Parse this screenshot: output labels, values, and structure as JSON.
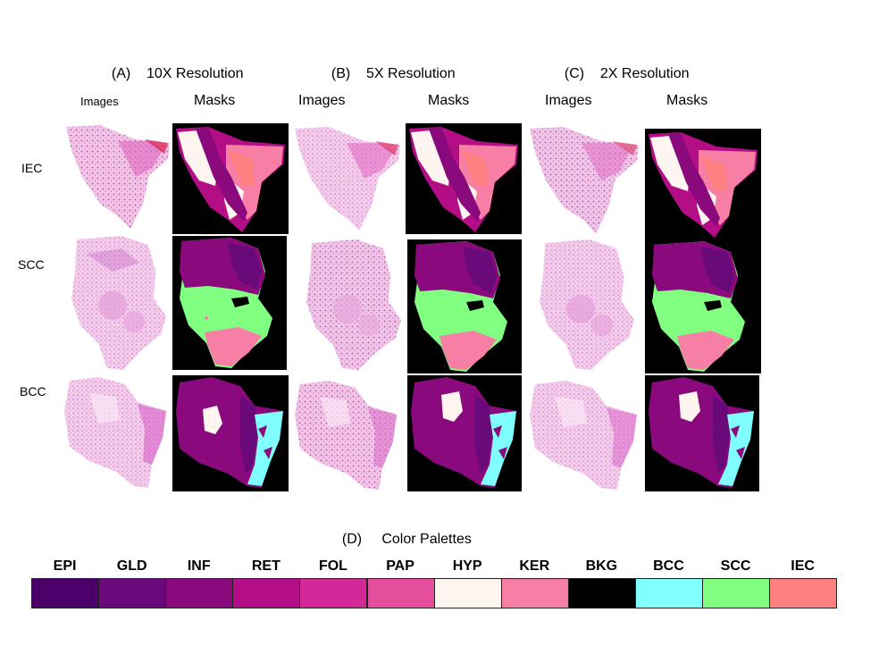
{
  "sections": [
    {
      "letter": "(A)",
      "title": "10X Resolution"
    },
    {
      "letter": "(B)",
      "title": "5X Resolution"
    },
    {
      "letter": "(C)",
      "title": "2X Resolution"
    }
  ],
  "column_headers": {
    "images": "Images",
    "masks": "Masks"
  },
  "row_labels": [
    "IEC",
    "SCC",
    "BCC"
  ],
  "palette": {
    "letter": "(D)",
    "title": "Color Palettes",
    "classes": [
      {
        "label": "EPI",
        "color": "#4a0068"
      },
      {
        "label": "GLD",
        "color": "#6a0a7a"
      },
      {
        "label": "INF",
        "color": "#8a0a7e"
      },
      {
        "label": "RET",
        "color": "#b30e86"
      },
      {
        "label": "FOL",
        "color": "#d3289a"
      },
      {
        "label": "PAP",
        "color": "#e54e9c"
      },
      {
        "label": "HYP",
        "color": "#fff5f0"
      },
      {
        "label": "KER",
        "color": "#f77fa6"
      },
      {
        "label": "BKG",
        "color": "#000000"
      },
      {
        "label": "BCC",
        "color": "#80ffff"
      },
      {
        "label": "SCC",
        "color": "#80ff80"
      },
      {
        "label": "IEC",
        "color": "#ff8080"
      }
    ]
  }
}
